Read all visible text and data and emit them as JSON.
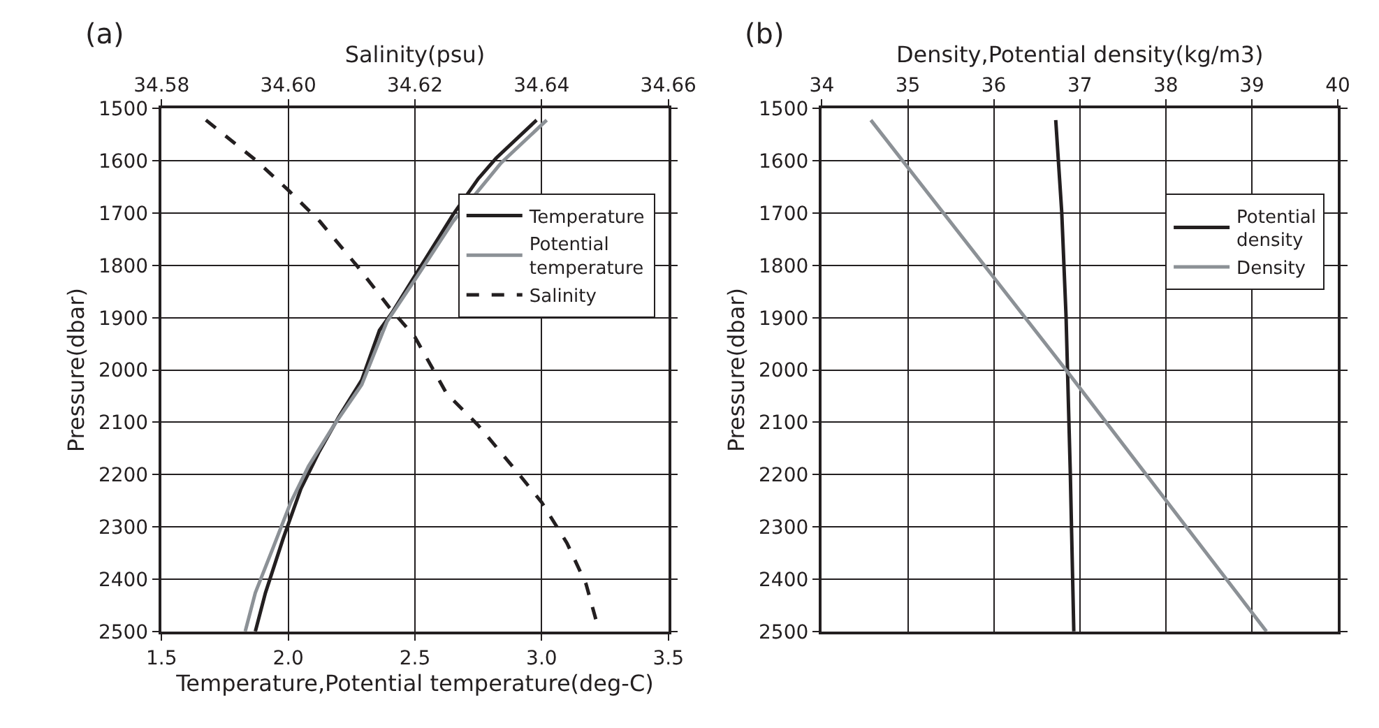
{
  "chart_data": [
    {
      "type": "line",
      "title": "(a)",
      "xlabel": "Temperature,Potential temperature(deg-C)",
      "x2label": "Salinity(psu)",
      "ylabel": "Pressure(dbar)",
      "xlim": [
        1.5,
        3.5
      ],
      "xticks": [
        1.5,
        {
          "value": 2,
          "label": "2.0"
        },
        2.5,
        {
          "value": 3,
          "label": "3.0"
        },
        3.5
      ],
      "x2lim": [
        34.58,
        34.66
      ],
      "x2ticks": [
        34.58,
        {
          "value": 34.6,
          "label": "34.60"
        },
        34.62,
        34.64,
        {
          "value": 34.66,
          "label": "34.66"
        }
      ],
      "ylim": [
        2500,
        1500
      ],
      "yticks": [
        1500,
        1600,
        1700,
        1800,
        1900,
        2000,
        2100,
        2200,
        2300,
        2400,
        2500
      ],
      "grid": true,
      "legend": "top right",
      "series": [
        {
          "name": "Temperature",
          "color": "#231f20",
          "line_style": "solid",
          "x": [
            2.98,
            2.82,
            2.75,
            2.65,
            2.51,
            2.41,
            2.36,
            2.29,
            2.2,
            2.12,
            2.05,
            1.98,
            1.91,
            1.87
          ],
          "values": [
            1522,
            1595,
            1634,
            1703,
            1812,
            1890,
            1924,
            2019,
            2089,
            2158,
            2227,
            2322,
            2426,
            2500
          ]
        },
        {
          "name": "Potential temperature",
          "color": "#8c9196",
          "line_style": "solid",
          "x": [
            3.02,
            2.84,
            2.65,
            2.51,
            2.39,
            2.29,
            2.18,
            2.08,
            2.01,
            1.94,
            1.87,
            1.83
          ],
          "values": [
            1522,
            1604,
            1716,
            1820,
            1907,
            2028,
            2106,
            2184,
            2253,
            2340,
            2426,
            2500
          ]
        },
        {
          "name": "Salinity",
          "color": "#231f20",
          "line_style": "dashed",
          "axis": "x2",
          "x": [
            34.587,
            34.595,
            34.6,
            34.605,
            34.611,
            34.616,
            34.62,
            34.625,
            34.63,
            34.636,
            34.64,
            34.644,
            34.647,
            34.649
          ],
          "values": [
            1522,
            1600,
            1656,
            1716,
            1803,
            1881,
            1937,
            2045,
            2106,
            2193,
            2253,
            2331,
            2409,
            2496
          ]
        }
      ]
    },
    {
      "type": "line",
      "title": "(b)",
      "xlabel": "Density,Potential density(kg/m3)",
      "ylabel": "Pressure(dbar)",
      "xlim": [
        34,
        40
      ],
      "xticks": [
        34,
        35,
        36,
        37,
        38,
        39,
        40
      ],
      "ylim": [
        2500,
        1500
      ],
      "yticks": [
        1500,
        1600,
        1700,
        1800,
        1900,
        2000,
        2100,
        2200,
        2300,
        2400,
        2500
      ],
      "grid": true,
      "legend": "top right",
      "series": [
        {
          "name": "Potential density",
          "color": "#231f20",
          "line_style": "solid",
          "x": [
            36.72,
            36.79,
            36.84,
            36.89,
            36.93
          ],
          "values": [
            1522,
            1699,
            1898,
            2201,
            2500
          ]
        },
        {
          "name": "Density",
          "color": "#8c9196",
          "line_style": "solid",
          "x": [
            34.57,
            36.84,
            39.17
          ],
          "values": [
            1522,
            2000,
            2500
          ]
        }
      ]
    }
  ]
}
